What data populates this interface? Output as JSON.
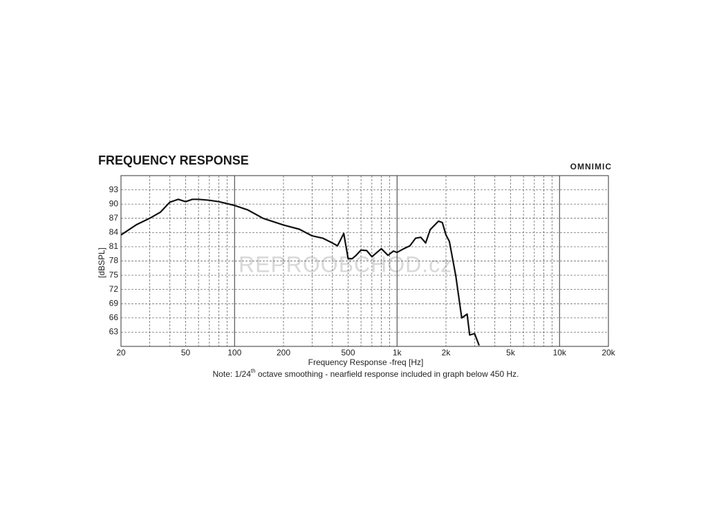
{
  "chart_data": {
    "type": "line",
    "title": "FREQUENCY RESPONSE",
    "brand": "OMNIMIC",
    "watermark": "REPROOBCHOD.cz",
    "ylabel": "[dBSPL]",
    "xlabel": "Frequency Response -freq [Hz]",
    "note": [
      "Note: 1/24",
      "th",
      " octave smoothing - nearfield response included in graph below 450 Hz."
    ],
    "xlog": true,
    "xlim": [
      20,
      20000
    ],
    "ylim": [
      60,
      96
    ],
    "xticks": [
      20,
      50,
      100,
      200,
      500,
      {
        "value": 1000,
        "label": "1k"
      },
      {
        "value": 2000,
        "label": "2k"
      },
      {
        "value": 5000,
        "label": "5k"
      },
      {
        "value": 10000,
        "label": "10k"
      },
      {
        "value": 20000,
        "label": "20k"
      }
    ],
    "xgrid": [
      30,
      40,
      50,
      60,
      70,
      80,
      90,
      100,
      200,
      300,
      400,
      500,
      600,
      700,
      800,
      900,
      1000,
      2000,
      3000,
      4000,
      5000,
      6000,
      7000,
      8000,
      9000,
      10000
    ],
    "xmajor": [
      100,
      1000,
      10000
    ],
    "yticks": [
      63,
      66,
      69,
      72,
      75,
      78,
      81,
      84,
      87,
      90,
      93
    ],
    "grid": true,
    "series": [
      {
        "name": "response",
        "color": "#111111",
        "x": [
          20,
          25,
          30,
          35,
          40,
          45,
          50,
          55,
          60,
          70,
          80,
          90,
          100,
          120,
          150,
          200,
          250,
          300,
          350,
          400,
          430,
          470,
          500,
          530,
          560,
          600,
          650,
          700,
          800,
          880,
          950,
          1000,
          1100,
          1200,
          1300,
          1400,
          1500,
          1600,
          1800,
          1900,
          2000,
          2100,
          2300,
          2500,
          2700,
          2800,
          3000,
          3200
        ],
        "values": [
          83.5,
          85.7,
          87.0,
          88.3,
          90.4,
          91.0,
          90.5,
          91.0,
          91.0,
          90.8,
          90.5,
          90.1,
          89.7,
          88.8,
          87.0,
          85.6,
          84.7,
          83.3,
          82.8,
          81.8,
          81.2,
          83.8,
          78.5,
          78.5,
          79.2,
          80.3,
          80.2,
          78.9,
          80.6,
          79.2,
          80.1,
          79.8,
          80.6,
          81.2,
          82.8,
          83.0,
          81.8,
          84.6,
          86.4,
          86.1,
          83.5,
          82.1,
          74.8,
          66.0,
          66.8,
          62.4,
          62.7,
          60.2
        ]
      }
    ]
  }
}
